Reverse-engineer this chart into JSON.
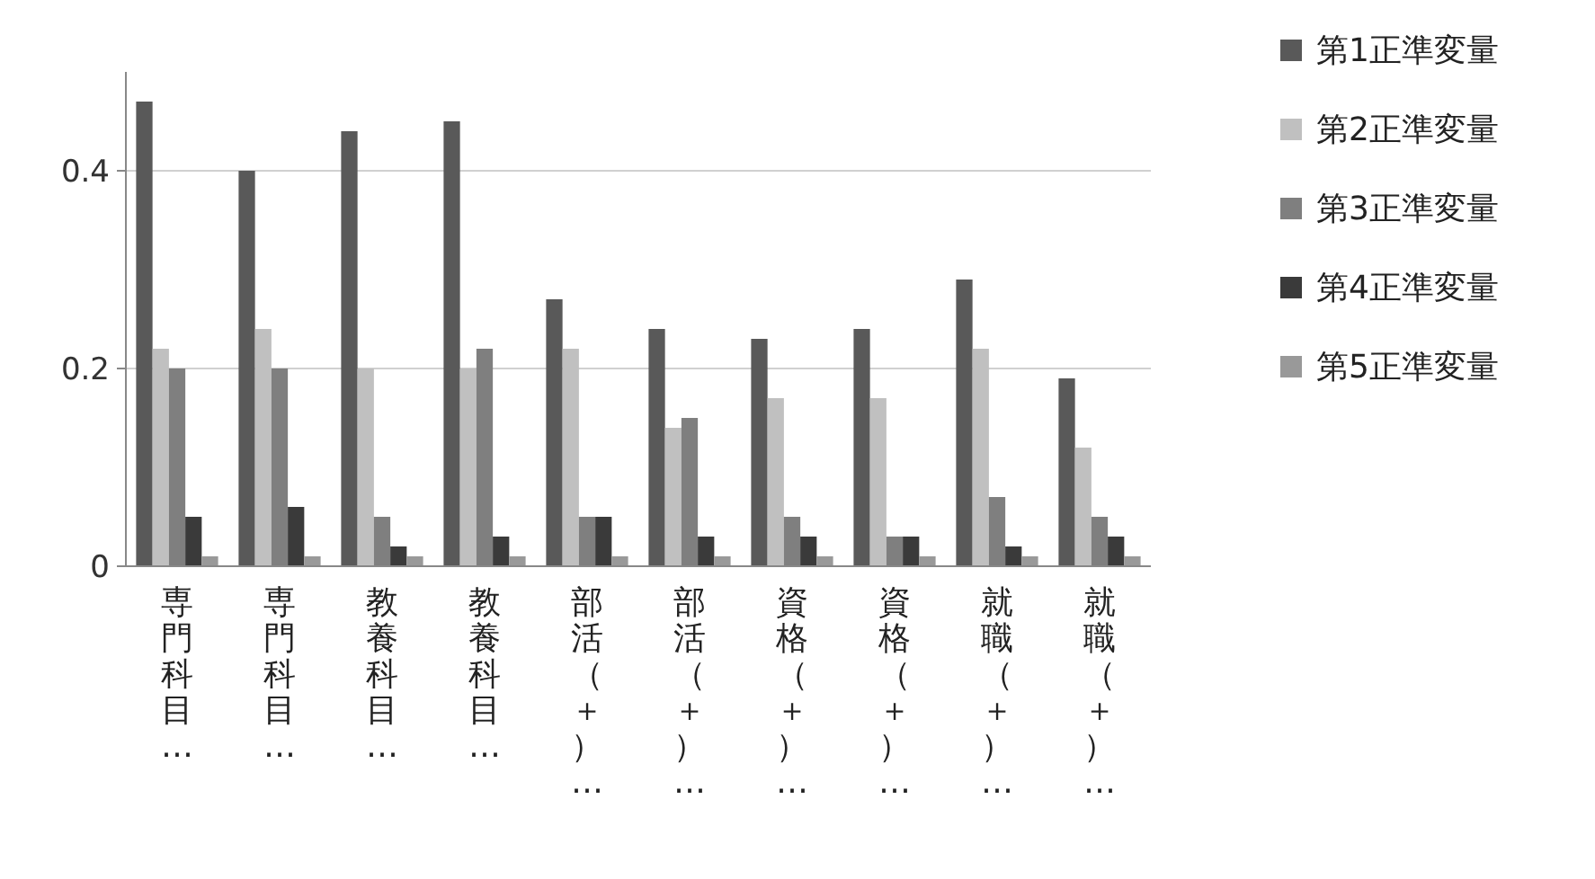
{
  "chart_data": {
    "type": "bar",
    "categories": [
      "専門科目…",
      "専門科目…",
      "教養科目…",
      "教養科目…",
      "部活（＋）…",
      "部活（＋）…",
      "資格（＋）…",
      "資格（＋）…",
      "就職（＋）…",
      "就職（＋）…"
    ],
    "series": [
      {
        "name": "第1正準変量",
        "color": "#595959",
        "values": [
          0.47,
          0.4,
          0.44,
          0.45,
          0.27,
          0.24,
          0.23,
          0.24,
          0.29,
          0.19
        ]
      },
      {
        "name": "第2正準変量",
        "color": "#c0c0c0",
        "values": [
          0.22,
          0.24,
          0.2,
          0.2,
          0.22,
          0.14,
          0.17,
          0.17,
          0.22,
          0.12
        ]
      },
      {
        "name": "第3正準変量",
        "color": "#7f7f7f",
        "values": [
          0.2,
          0.2,
          0.05,
          0.22,
          0.05,
          0.15,
          0.05,
          0.03,
          0.07,
          0.05
        ]
      },
      {
        "name": "第4正準変量",
        "color": "#3a3a3a",
        "values": [
          0.05,
          0.06,
          0.02,
          0.03,
          0.05,
          0.03,
          0.03,
          0.03,
          0.02,
          0.03
        ]
      },
      {
        "name": "第5正準変量",
        "color": "#999999",
        "values": [
          0.01,
          0.01,
          0.01,
          0.01,
          0.01,
          0.01,
          0.01,
          0.01,
          0.01,
          0.01
        ]
      }
    ],
    "ylim": [
      0,
      0.5
    ],
    "yticks": [
      0,
      0.2,
      0.4
    ],
    "grid": "y",
    "legend": "right"
  }
}
